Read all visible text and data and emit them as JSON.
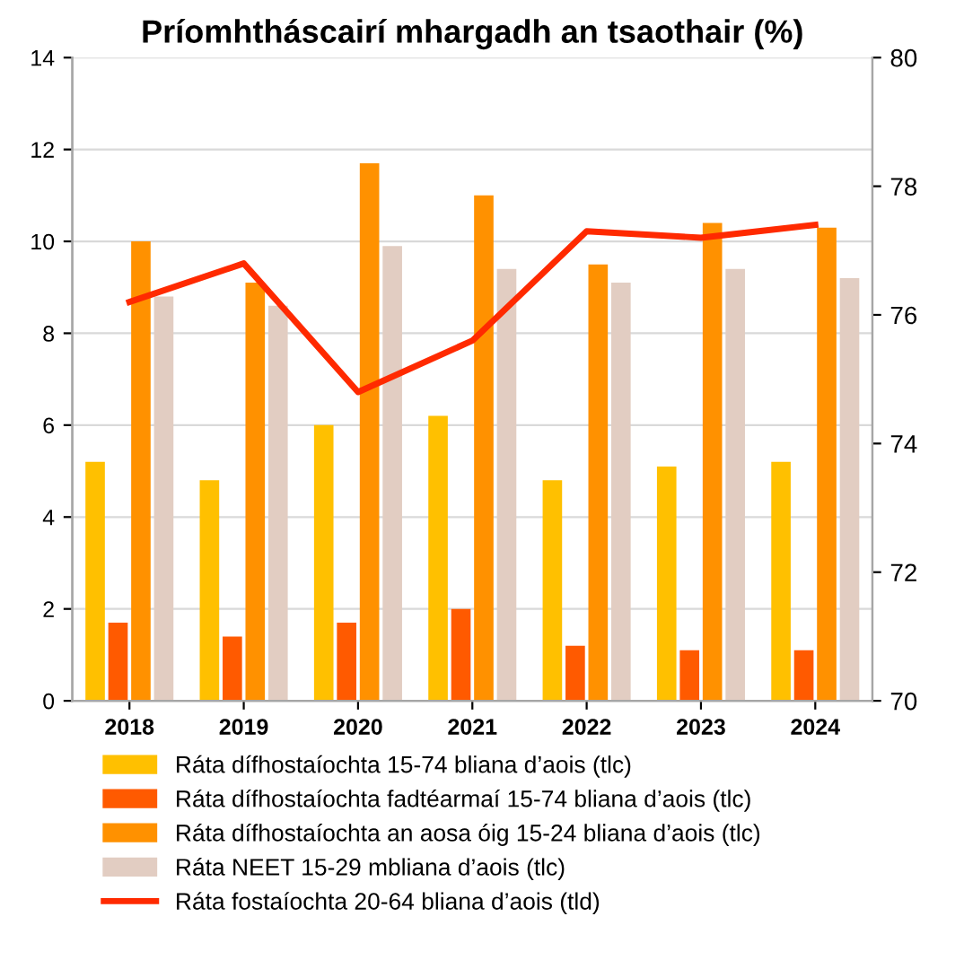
{
  "chart_data": {
    "type": "bar",
    "title": "Príomhtháscairí mhargadh an tsaothair (%)",
    "categories": [
      "2018",
      "2019",
      "2020",
      "2021",
      "2022",
      "2023",
      "2024"
    ],
    "series": [
      {
        "name": "Ráta dífhostaíochta 15-74 bliana d’aois (tlc)",
        "color": "#ffc000",
        "values": [
          5.2,
          4.8,
          6.0,
          6.2,
          4.8,
          5.1,
          5.2
        ]
      },
      {
        "name": "Ráta dífhostaíochta fadtéarmaí 15-74 bliana d’aois (tlc)",
        "color": "#ff5a00",
        "values": [
          1.7,
          1.4,
          1.7,
          2.0,
          1.2,
          1.1,
          1.1
        ]
      },
      {
        "name": "Ráta dífhostaíochta an aosa óig 15-24 bliana d’aois (tlc)",
        "color": "#ff9100",
        "values": [
          10.0,
          9.1,
          11.7,
          11.0,
          9.5,
          10.4,
          10.3
        ]
      },
      {
        "name": "Ráta NEET 15-29 mbliana d’aois (tlc)",
        "color": "#e2cdc2",
        "values": [
          8.8,
          8.6,
          9.9,
          9.4,
          9.1,
          9.4,
          9.2
        ]
      },
      {
        "name": "Ráta fostaíochta 20-64 bliana d’aois (tld)",
        "color": "#ff2a00",
        "type": "line",
        "axis": "y2",
        "values": [
          76.2,
          76.8,
          74.8,
          75.6,
          77.3,
          77.2,
          77.4
        ]
      }
    ],
    "ylim": [
      0,
      14
    ],
    "yticks": [
      0,
      2,
      4,
      6,
      8,
      10,
      12,
      14
    ],
    "y2lim": [
      70,
      80
    ],
    "y2ticks": [
      70,
      72,
      74,
      76,
      78,
      80
    ],
    "grid": "y",
    "legend": "bottom",
    "marker": "none",
    "line_style": "solid"
  }
}
